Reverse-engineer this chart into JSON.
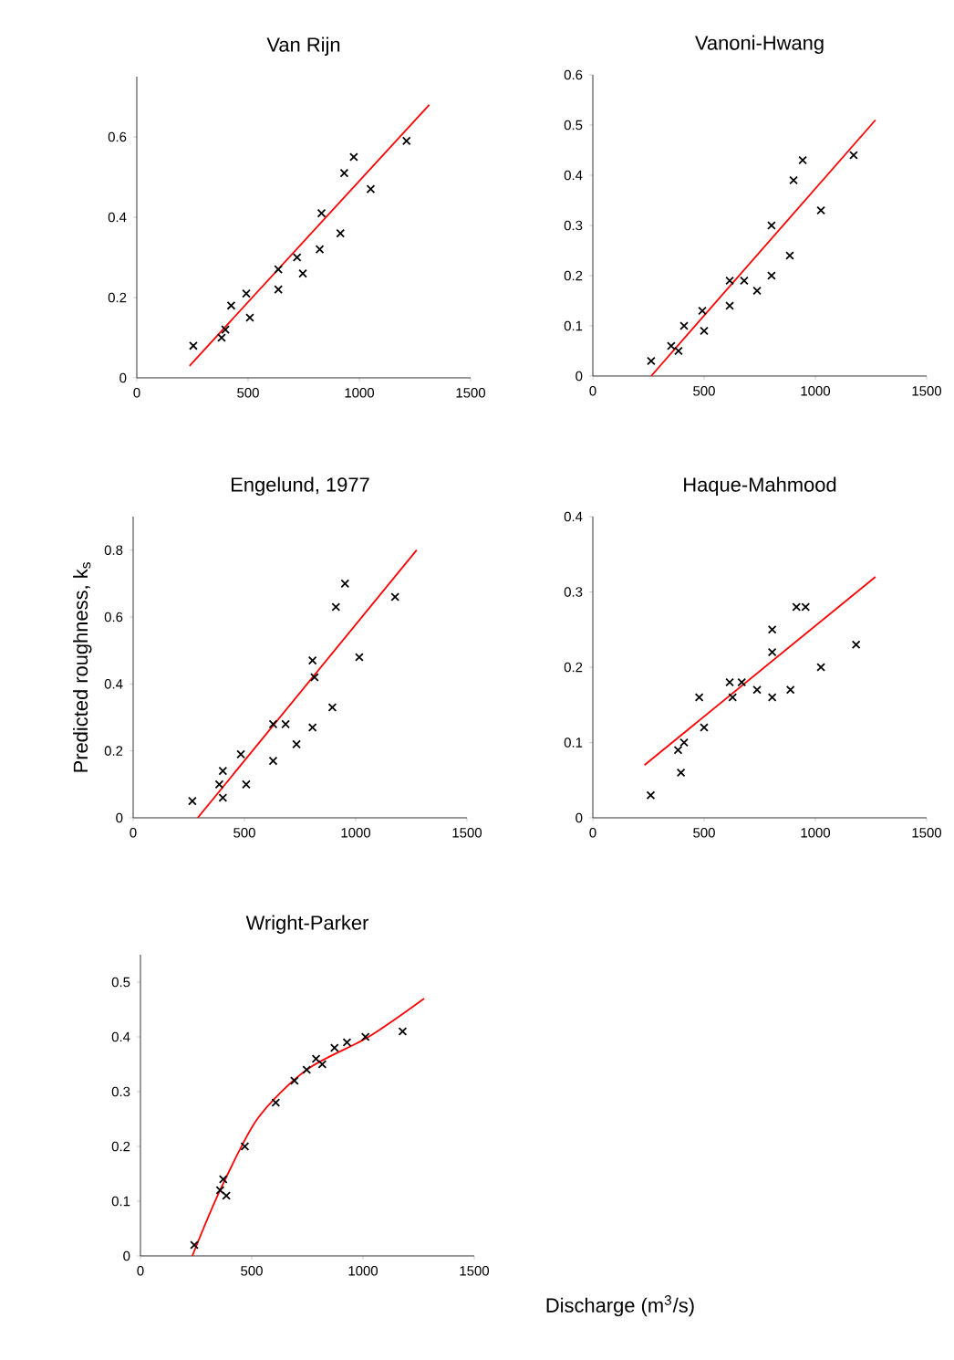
{
  "chart_data": [
    {
      "type": "scatter",
      "title": "Van Rijn",
      "marker": "cross",
      "xlim": [
        0,
        1500
      ],
      "ylim": [
        0,
        0.75
      ],
      "xticks": [
        0,
        500,
        1000,
        1500
      ],
      "yticks": [
        0,
        0.2,
        0.4,
        0.6
      ],
      "series": [
        {
          "type": "scatter",
          "color": "#000000",
          "x": [
            254,
            398,
            381,
            424,
            492,
            508,
            636,
            636,
            720,
            746,
            822,
            830,
            915,
            932,
            975,
            1051,
            1212
          ],
          "values": [
            0.08,
            0.12,
            0.1,
            0.18,
            0.21,
            0.15,
            0.27,
            0.22,
            0.3,
            0.26,
            0.32,
            0.41,
            0.36,
            0.51,
            0.55,
            0.47,
            0.59
          ]
        },
        {
          "type": "line",
          "marker": "none",
          "color": "#ff0000",
          "x": [
            237,
            1314
          ],
          "values": [
            0.03,
            0.68
          ]
        }
      ]
    },
    {
      "type": "scatter",
      "title": "Vanoni-Hwang",
      "marker": "cross",
      "xlim": [
        0,
        1500
      ],
      "ylim": [
        0,
        0.6
      ],
      "xticks": [
        0,
        500,
        1000,
        1500
      ],
      "yticks": [
        0,
        0.1,
        0.2,
        0.3,
        0.4,
        0.5,
        0.6
      ],
      "series": [
        {
          "type": "scatter",
          "color": "#000000",
          "x": [
            262,
            352,
            385,
            410,
            492,
            500,
            615,
            615,
            680,
            738,
            803,
            803,
            885,
            902,
            943,
            1025,
            1172
          ],
          "values": [
            0.03,
            0.06,
            0.05,
            0.1,
            0.13,
            0.09,
            0.14,
            0.19,
            0.19,
            0.17,
            0.2,
            0.3,
            0.24,
            0.39,
            0.43,
            0.33,
            0.44
          ]
        },
        {
          "type": "line",
          "marker": "none",
          "color": "#ff0000",
          "x": [
            262,
            1270
          ],
          "values": [
            0,
            0.51
          ]
        }
      ]
    },
    {
      "type": "scatter",
      "title": "Engelund, 1977",
      "ylabel": "Predicted roughness, k$_{s}$",
      "marker": "cross",
      "xlim": [
        0,
        1500
      ],
      "ylim": [
        0,
        0.9
      ],
      "xticks": [
        0,
        500,
        1000,
        1500
      ],
      "yticks": [
        0,
        0.2,
        0.4,
        0.6,
        0.8
      ],
      "series": [
        {
          "type": "scatter",
          "color": "#000000",
          "x": [
            266,
            387,
            403,
            403,
            484,
            508,
            629,
            629,
            685,
            734,
            806,
            806,
            815,
            895,
            911,
            952,
            1016,
            1177
          ],
          "values": [
            0.05,
            0.1,
            0.14,
            0.06,
            0.19,
            0.1,
            0.17,
            0.28,
            0.28,
            0.22,
            0.27,
            0.47,
            0.42,
            0.33,
            0.63,
            0.7,
            0.48,
            0.66
          ]
        },
        {
          "type": "line",
          "marker": "none",
          "color": "#ff0000",
          "x": [
            290,
            1274
          ],
          "values": [
            0,
            0.8
          ]
        }
      ]
    },
    {
      "type": "scatter",
      "title": "Haque-Mahmood",
      "marker": "cross",
      "xlim": [
        0,
        1500
      ],
      "ylim": [
        0,
        0.4
      ],
      "xticks": [
        0,
        500,
        1000,
        1500
      ],
      "yticks": [
        0,
        0.1,
        0.2,
        0.3,
        0.4
      ],
      "series": [
        {
          "type": "scatter",
          "color": "#000000",
          "x": [
            260,
            396,
            383,
            410,
            500,
            478,
            615,
            628,
            669,
            738,
            806,
            806,
            806,
            888,
            915,
            956,
            1025,
            1183
          ],
          "values": [
            0.03,
            0.06,
            0.09,
            0.1,
            0.12,
            0.16,
            0.18,
            0.16,
            0.18,
            0.17,
            0.16,
            0.22,
            0.25,
            0.17,
            0.28,
            0.28,
            0.2,
            0.23
          ]
        },
        {
          "type": "line",
          "marker": "none",
          "color": "#ff0000",
          "x": [
            232,
            1270
          ],
          "values": [
            0.07,
            0.32
          ]
        }
      ]
    },
    {
      "type": "scatter",
      "title": "Wright-Parker",
      "xlabel": "Discharge (m$^{3}$/s)",
      "marker": "cross",
      "xlim": [
        0,
        1500
      ],
      "ylim": [
        0,
        0.55
      ],
      "xticks": [
        0,
        500,
        1000,
        1500
      ],
      "yticks": [
        0,
        0.1,
        0.2,
        0.3,
        0.4,
        0.5
      ],
      "series": [
        {
          "type": "scatter",
          "color": "#000000",
          "x": [
            242,
            358,
            372,
            386,
            469,
            608,
            692,
            747,
            789,
            817,
            872,
            928,
            1011,
            1178
          ],
          "values": [
            0.02,
            0.12,
            0.14,
            0.11,
            0.2,
            0.28,
            0.32,
            0.34,
            0.36,
            0.35,
            0.38,
            0.39,
            0.4,
            0.41
          ]
        },
        {
          "type": "line",
          "marker": "none",
          "color": "#ff0000",
          "x": [
            233,
            358,
            525,
            747,
            1025,
            1275
          ],
          "values": [
            0,
            0.12,
            0.25,
            0.34,
            0.4,
            0.47
          ]
        }
      ]
    }
  ]
}
